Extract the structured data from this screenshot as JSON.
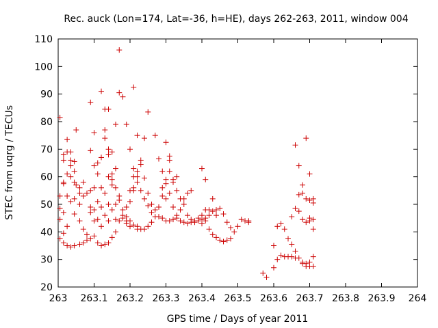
{
  "chart_data": {
    "type": "scatter",
    "title": "Rec. auck (Lon=174, Lat=-36, h=HE), days 262-263, 2011, window 004",
    "xlabel": "GPS time / Days of year 2011",
    "ylabel": "STEC from uqrg / TECUs",
    "xlim": [
      263,
      264
    ],
    "ylim": [
      20,
      110
    ],
    "xticks": [
      "263",
      "263.1",
      "263.2",
      "263.3",
      "263.4",
      "263.5",
      "263.6",
      "263.7",
      "263.8",
      "263.9",
      "264"
    ],
    "yticks": [
      "20",
      "30",
      "40",
      "50",
      "60",
      "70",
      "80",
      "90",
      "100",
      "110"
    ],
    "grid": false,
    "marker": "+",
    "color": "#cc0000",
    "series": [
      {
        "points": [
          [
            263.005,
            81.5
          ],
          [
            263.005,
            53
          ],
          [
            263.005,
            48.5
          ],
          [
            263.005,
            44.5
          ],
          [
            263.005,
            37.5
          ],
          [
            263.015,
            68
          ],
          [
            263.015,
            66
          ],
          [
            263.015,
            58
          ],
          [
            263.015,
            57.5
          ],
          [
            263.015,
            47
          ],
          [
            263.015,
            39.5
          ],
          [
            263.015,
            36
          ],
          [
            263.025,
            73.5
          ],
          [
            263.025,
            69
          ],
          [
            263.025,
            61
          ],
          [
            263.025,
            53
          ],
          [
            263.025,
            42
          ],
          [
            263.025,
            35
          ],
          [
            263.035,
            69
          ],
          [
            263.035,
            66
          ],
          [
            263.035,
            64
          ],
          [
            263.035,
            60
          ],
          [
            263.035,
            51
          ],
          [
            263.035,
            34.5
          ],
          [
            263.045,
            65.5
          ],
          [
            263.045,
            62
          ],
          [
            263.045,
            58
          ],
          [
            263.045,
            52
          ],
          [
            263.045,
            46.5
          ],
          [
            263.045,
            35
          ],
          [
            263.05,
            77
          ],
          [
            263.05,
            57
          ],
          [
            263.06,
            56
          ],
          [
            263.06,
            54
          ],
          [
            263.06,
            50
          ],
          [
            263.06,
            44
          ],
          [
            263.06,
            35.5
          ],
          [
            263.07,
            58
          ],
          [
            263.07,
            53
          ],
          [
            263.07,
            41
          ],
          [
            263.07,
            36
          ],
          [
            263.08,
            54
          ],
          [
            263.08,
            39
          ],
          [
            263.08,
            37
          ],
          [
            263.09,
            87
          ],
          [
            263.09,
            69.5
          ],
          [
            263.09,
            55
          ],
          [
            263.09,
            49
          ],
          [
            263.09,
            47
          ],
          [
            263.09,
            37.5
          ],
          [
            263.1,
            76
          ],
          [
            263.1,
            64
          ],
          [
            263.1,
            56
          ],
          [
            263.1,
            48
          ],
          [
            263.1,
            44
          ],
          [
            263.1,
            38.5
          ],
          [
            263.11,
            65
          ],
          [
            263.11,
            61
          ],
          [
            263.11,
            51
          ],
          [
            263.11,
            44.5
          ],
          [
            263.11,
            36
          ],
          [
            263.12,
            91
          ],
          [
            263.12,
            67
          ],
          [
            263.12,
            56
          ],
          [
            263.12,
            49
          ],
          [
            263.12,
            42
          ],
          [
            263.12,
            35
          ],
          [
            263.13,
            84.5
          ],
          [
            263.13,
            77
          ],
          [
            263.13,
            74
          ],
          [
            263.13,
            54
          ],
          [
            263.13,
            46
          ],
          [
            263.13,
            35.5
          ],
          [
            263.14,
            84.5
          ],
          [
            263.14,
            70
          ],
          [
            263.14,
            68
          ],
          [
            263.14,
            60
          ],
          [
            263.14,
            50
          ],
          [
            263.14,
            44
          ],
          [
            263.14,
            36
          ],
          [
            263.15,
            69
          ],
          [
            263.15,
            61
          ],
          [
            263.15,
            59
          ],
          [
            263.15,
            57
          ],
          [
            263.15,
            48
          ],
          [
            263.15,
            38
          ],
          [
            263.16,
            79
          ],
          [
            263.16,
            63
          ],
          [
            263.16,
            56
          ],
          [
            263.16,
            50
          ],
          [
            263.16,
            44.5
          ],
          [
            263.16,
            40
          ],
          [
            263.17,
            106
          ],
          [
            263.17,
            90.5
          ],
          [
            263.17,
            53
          ],
          [
            263.17,
            51.5
          ],
          [
            263.17,
            44
          ],
          [
            263.18,
            89
          ],
          [
            263.18,
            48
          ],
          [
            263.18,
            46
          ],
          [
            263.18,
            45
          ],
          [
            263.19,
            79
          ],
          [
            263.19,
            49
          ],
          [
            263.19,
            45.5
          ],
          [
            263.19,
            44
          ],
          [
            263.19,
            43
          ],
          [
            263.2,
            70
          ],
          [
            263.2,
            55
          ],
          [
            263.2,
            51
          ],
          [
            263.2,
            44
          ],
          [
            263.2,
            42
          ],
          [
            263.21,
            92.5
          ],
          [
            263.21,
            63
          ],
          [
            263.21,
            56
          ],
          [
            263.21,
            60
          ],
          [
            263.21,
            55
          ],
          [
            263.21,
            42.5
          ],
          [
            263.22,
            75
          ],
          [
            263.22,
            62
          ],
          [
            263.22,
            60
          ],
          [
            263.22,
            58
          ],
          [
            263.22,
            42
          ],
          [
            263.22,
            41
          ],
          [
            263.23,
            66
          ],
          [
            263.23,
            64.5
          ],
          [
            263.23,
            55
          ],
          [
            263.23,
            41
          ],
          [
            263.24,
            74
          ],
          [
            263.24,
            59.5
          ],
          [
            263.24,
            52
          ],
          [
            263.24,
            41
          ],
          [
            263.25,
            83.5
          ],
          [
            263.25,
            54
          ],
          [
            263.25,
            49.5
          ],
          [
            263.25,
            42
          ],
          [
            263.26,
            50
          ],
          [
            263.26,
            47
          ],
          [
            263.26,
            43.5
          ],
          [
            263.27,
            75
          ],
          [
            263.27,
            48
          ],
          [
            263.27,
            45.5
          ],
          [
            263.28,
            66.5
          ],
          [
            263.28,
            49
          ],
          [
            263.28,
            45.5
          ],
          [
            263.29,
            62
          ],
          [
            263.29,
            56
          ],
          [
            263.29,
            53
          ],
          [
            263.29,
            45
          ],
          [
            263.3,
            72.5
          ],
          [
            263.3,
            59
          ],
          [
            263.3,
            57.5
          ],
          [
            263.3,
            52
          ],
          [
            263.3,
            44
          ],
          [
            263.31,
            67.5
          ],
          [
            263.31,
            66
          ],
          [
            263.31,
            62
          ],
          [
            263.31,
            54
          ],
          [
            263.31,
            44
          ],
          [
            263.32,
            59
          ],
          [
            263.32,
            58
          ],
          [
            263.32,
            49
          ],
          [
            263.32,
            44.5
          ],
          [
            263.33,
            60
          ],
          [
            263.33,
            55
          ],
          [
            263.33,
            46
          ],
          [
            263.33,
            45
          ],
          [
            263.34,
            52
          ],
          [
            263.34,
            48
          ],
          [
            263.34,
            44
          ],
          [
            263.35,
            52
          ],
          [
            263.35,
            50
          ],
          [
            263.35,
            43.5
          ],
          [
            263.36,
            54
          ],
          [
            263.36,
            46
          ],
          [
            263.36,
            43
          ],
          [
            263.37,
            55
          ],
          [
            263.37,
            44.5
          ],
          [
            263.37,
            43.5
          ],
          [
            263.38,
            44
          ],
          [
            263.38,
            43.5
          ],
          [
            263.39,
            44
          ],
          [
            263.39,
            45
          ],
          [
            263.4,
            63
          ],
          [
            263.4,
            46
          ],
          [
            263.4,
            44.5
          ],
          [
            263.4,
            43
          ],
          [
            263.41,
            59
          ],
          [
            263.41,
            48
          ],
          [
            263.41,
            45
          ],
          [
            263.41,
            44
          ],
          [
            263.42,
            48
          ],
          [
            263.42,
            46
          ],
          [
            263.42,
            41
          ],
          [
            263.43,
            52
          ],
          [
            263.43,
            47.5
          ],
          [
            263.43,
            39
          ],
          [
            263.44,
            48
          ],
          [
            263.44,
            46
          ],
          [
            263.44,
            38
          ],
          [
            263.45,
            48.5
          ],
          [
            263.45,
            37
          ],
          [
            263.46,
            46.5
          ],
          [
            263.46,
            36.5
          ],
          [
            263.47,
            43.5
          ],
          [
            263.47,
            37
          ],
          [
            263.48,
            41.5
          ],
          [
            263.48,
            37.5
          ],
          [
            263.49,
            40
          ],
          [
            263.5,
            42
          ],
          [
            263.51,
            44.5
          ],
          [
            263.52,
            44
          ],
          [
            263.53,
            44
          ],
          [
            263.53,
            43.5
          ],
          [
            263.57,
            25
          ],
          [
            263.58,
            23.5
          ],
          [
            263.6,
            35
          ],
          [
            263.6,
            27
          ],
          [
            263.61,
            42
          ],
          [
            263.61,
            30
          ],
          [
            263.62,
            43
          ],
          [
            263.62,
            31.5
          ],
          [
            263.63,
            41
          ],
          [
            263.63,
            31
          ],
          [
            263.64,
            37.5
          ],
          [
            263.64,
            31
          ],
          [
            263.65,
            45.5
          ],
          [
            263.65,
            35.5
          ],
          [
            263.65,
            31
          ],
          [
            263.66,
            71.5
          ],
          [
            263.66,
            48.5
          ],
          [
            263.66,
            33
          ],
          [
            263.66,
            30.5
          ],
          [
            263.67,
            64
          ],
          [
            263.67,
            53.5
          ],
          [
            263.67,
            47.5
          ],
          [
            263.67,
            30.5
          ],
          [
            263.68,
            57
          ],
          [
            263.68,
            54
          ],
          [
            263.68,
            44.5
          ],
          [
            263.68,
            29
          ],
          [
            263.68,
            28.5
          ],
          [
            263.69,
            74
          ],
          [
            263.69,
            52
          ],
          [
            263.69,
            43.5
          ],
          [
            263.69,
            28.5
          ],
          [
            263.69,
            27.5
          ],
          [
            263.7,
            61
          ],
          [
            263.7,
            51.5
          ],
          [
            263.7,
            45
          ],
          [
            263.7,
            44
          ],
          [
            263.7,
            29
          ],
          [
            263.7,
            27.5
          ],
          [
            263.71,
            52
          ],
          [
            263.71,
            50.5
          ],
          [
            263.71,
            44.5
          ],
          [
            263.71,
            41
          ],
          [
            263.71,
            31
          ],
          [
            263.71,
            27.5
          ]
        ]
      }
    ]
  }
}
